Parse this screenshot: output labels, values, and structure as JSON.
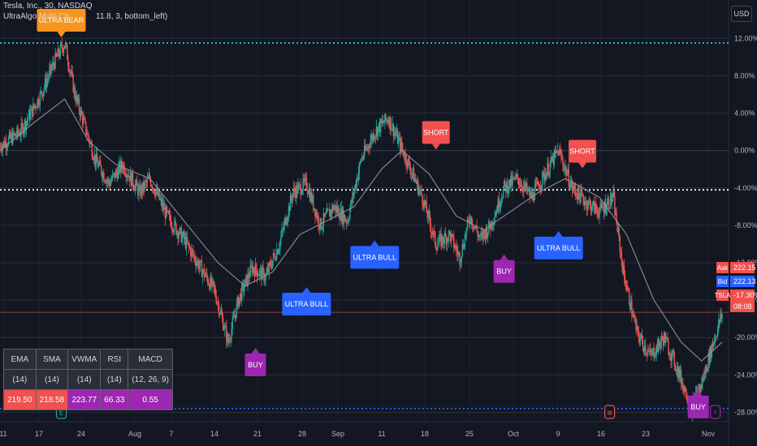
{
  "header": {
    "line1": "Tesla, Inc., 30, NASDAQ",
    "line2": "UltraAlgo Multi-Ch",
    "line2_tail": "11.8, 3, bottom_left)"
  },
  "currency_button": "USD",
  "price_labels": {
    "ask": {
      "label": "Ask",
      "value": "222.15"
    },
    "bid": {
      "label": "Bid",
      "value": "222.13"
    },
    "symbol": {
      "label": "TSLA",
      "value": "-17.30%",
      "countdown": "08:08"
    }
  },
  "colors": {
    "background": "#131722",
    "up": "#26a69a",
    "down": "#ef5350",
    "ma": "#9598a1",
    "bear_signal": "#f7941d",
    "short_signal": "#f0504e",
    "bull_signal": "#2962ff",
    "buy_signal": "#9c27b0"
  },
  "indicator_table": {
    "headers": [
      "EMA",
      "SMA",
      "VWMA",
      "RSI",
      "MACD"
    ],
    "periods": [
      "(14)",
      "(14)",
      "(14)",
      "(14)",
      "(12, 26, 9)"
    ],
    "values": [
      "219.50",
      "218.58",
      "223.77",
      "66.33",
      "0.55"
    ]
  },
  "chart_data": {
    "type": "candlestick",
    "y_axis": {
      "unit": "%",
      "ticks": [
        "12.00%",
        "8.00%",
        "4.00%",
        "0.00%",
        "-4.00%",
        "-8.00%",
        "-12.00%",
        "-16.00%",
        "-20.00%",
        "-24.00%",
        "-28.00%"
      ],
      "range": [
        -29,
        13.5
      ]
    },
    "x_axis": {
      "ticks": [
        "11",
        "17",
        "24",
        "Aug",
        "7",
        "14",
        "21",
        "28",
        "Sep",
        "11",
        "18",
        "25",
        "Oct",
        "9",
        "16",
        "23",
        "Nov"
      ]
    },
    "reference_lines": [
      {
        "value": 11.5,
        "style": "dotted",
        "color": "#26c6da"
      },
      {
        "value": -4.2,
        "style": "dotted",
        "color": "#ffffff"
      },
      {
        "value": -17.3,
        "style": "solid",
        "color": "#ef5350"
      },
      {
        "value": -27.6,
        "style": "dotted",
        "color": "#2962ff"
      }
    ],
    "price_path": [
      {
        "t": 0,
        "v": 0.5
      },
      {
        "t": 6,
        "v": 2.0
      },
      {
        "t": 12,
        "v": 6.0
      },
      {
        "t": 16,
        "v": 9.5
      },
      {
        "t": 19,
        "v": 11.5
      },
      {
        "t": 22,
        "v": 6.0
      },
      {
        "t": 28,
        "v": -1.0
      },
      {
        "t": 32,
        "v": -3.5
      },
      {
        "t": 36,
        "v": -1.5
      },
      {
        "t": 41,
        "v": -4.5
      },
      {
        "t": 44,
        "v": -3.0
      },
      {
        "t": 49,
        "v": -7.0
      },
      {
        "t": 54,
        "v": -9.5
      },
      {
        "t": 58,
        "v": -12.0
      },
      {
        "t": 63,
        "v": -15.0
      },
      {
        "t": 67,
        "v": -20.5
      },
      {
        "t": 70,
        "v": -16.0
      },
      {
        "t": 74,
        "v": -12.5
      },
      {
        "t": 78,
        "v": -13.5
      },
      {
        "t": 82,
        "v": -10.0
      },
      {
        "t": 86,
        "v": -4.5
      },
      {
        "t": 90,
        "v": -3.5
      },
      {
        "t": 94,
        "v": -8.0
      },
      {
        "t": 98,
        "v": -6.0
      },
      {
        "t": 102,
        "v": -7.5
      },
      {
        "t": 106,
        "v": -1.0
      },
      {
        "t": 110,
        "v": 2.0
      },
      {
        "t": 114,
        "v": 3.5
      },
      {
        "t": 117,
        "v": 1.0
      },
      {
        "t": 120,
        "v": -1.5
      },
      {
        "t": 124,
        "v": -5.0
      },
      {
        "t": 128,
        "v": -10.0
      },
      {
        "t": 132,
        "v": -9.0
      },
      {
        "t": 135,
        "v": -11.5
      },
      {
        "t": 138,
        "v": -7.0
      },
      {
        "t": 141,
        "v": -9.5
      },
      {
        "t": 144,
        "v": -8.0
      },
      {
        "t": 148,
        "v": -4.0
      },
      {
        "t": 152,
        "v": -3.0
      },
      {
        "t": 156,
        "v": -5.0
      },
      {
        "t": 160,
        "v": -2.5
      },
      {
        "t": 164,
        "v": 0.0
      },
      {
        "t": 168,
        "v": -4.0
      },
      {
        "t": 172,
        "v": -5.5
      },
      {
        "t": 176,
        "v": -6.5
      },
      {
        "t": 180,
        "v": -5.0
      },
      {
        "t": 183,
        "v": -13.0
      },
      {
        "t": 187,
        "v": -19.5
      },
      {
        "t": 191,
        "v": -22.0
      },
      {
        "t": 195,
        "v": -20.0
      },
      {
        "t": 199,
        "v": -23.5
      },
      {
        "t": 203,
        "v": -27.5
      },
      {
        "t": 206,
        "v": -25.0
      },
      {
        "t": 209,
        "v": -21.0
      },
      {
        "t": 212,
        "v": -17.5
      }
    ],
    "ma_path": [
      {
        "t": 0,
        "v": 0.0
      },
      {
        "t": 10,
        "v": 3.0
      },
      {
        "t": 19,
        "v": 5.5
      },
      {
        "t": 26,
        "v": 1.0
      },
      {
        "t": 34,
        "v": -1.5
      },
      {
        "t": 44,
        "v": -3.0
      },
      {
        "t": 54,
        "v": -7.5
      },
      {
        "t": 64,
        "v": -12.0
      },
      {
        "t": 72,
        "v": -14.5
      },
      {
        "t": 80,
        "v": -13.0
      },
      {
        "t": 88,
        "v": -9.0
      },
      {
        "t": 96,
        "v": -7.5
      },
      {
        "t": 104,
        "v": -6.0
      },
      {
        "t": 112,
        "v": -2.0
      },
      {
        "t": 118,
        "v": 0.0
      },
      {
        "t": 126,
        "v": -2.5
      },
      {
        "t": 134,
        "v": -7.0
      },
      {
        "t": 142,
        "v": -8.5
      },
      {
        "t": 150,
        "v": -6.5
      },
      {
        "t": 158,
        "v": -4.5
      },
      {
        "t": 166,
        "v": -3.0
      },
      {
        "t": 176,
        "v": -5.0
      },
      {
        "t": 184,
        "v": -9.0
      },
      {
        "t": 192,
        "v": -16.0
      },
      {
        "t": 200,
        "v": -20.5
      },
      {
        "t": 206,
        "v": -22.5
      },
      {
        "t": 212,
        "v": -20.5
      }
    ],
    "signals": [
      {
        "label": "ULTRA BEAR",
        "t": 18,
        "v": 11.5,
        "kind": "bear",
        "dir": "above"
      },
      {
        "label": "BUY",
        "t": 75,
        "v": -20.5,
        "kind": "buy",
        "dir": "below"
      },
      {
        "label": "ULTRA BULL",
        "t": 90,
        "v": -14.0,
        "kind": "bull",
        "dir": "below"
      },
      {
        "label": "ULTRA BULL",
        "t": 110,
        "v": -9.0,
        "kind": "bull",
        "dir": "below"
      },
      {
        "label": "SHORT",
        "t": 128,
        "v": -0.5,
        "kind": "short",
        "dir": "above"
      },
      {
        "label": "BUY",
        "t": 148,
        "v": -10.5,
        "kind": "buy",
        "dir": "below"
      },
      {
        "label": "ULTRA BULL",
        "t": 164,
        "v": -8.0,
        "kind": "bull",
        "dir": "below"
      },
      {
        "label": "SHORT",
        "t": 171,
        "v": -2.5,
        "kind": "short",
        "dir": "above"
      },
      {
        "label": "BUY",
        "t": 205,
        "v": -25.0,
        "kind": "buy",
        "dir": "below"
      }
    ],
    "event_markers": [
      {
        "t": 18,
        "kind": "earnings",
        "glyph": "E"
      },
      {
        "t": 179,
        "kind": "dividend",
        "glyph": "≡"
      },
      {
        "t": 210,
        "kind": "split",
        "glyph": "⚡"
      }
    ]
  }
}
